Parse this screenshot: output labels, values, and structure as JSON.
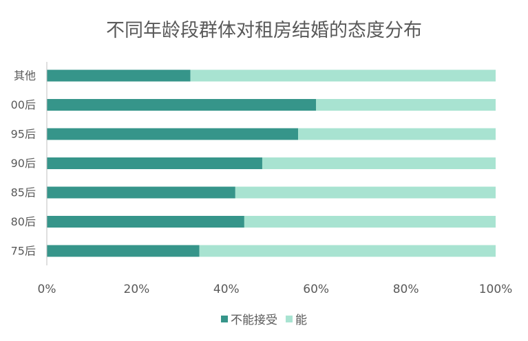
{
  "chart_data": {
    "type": "bar",
    "orientation": "horizontal",
    "stacked": true,
    "title": "不同年龄段群体对租房结婚的态度分布",
    "categories": [
      "其他",
      "00后",
      "95后",
      "90后",
      "85后",
      "80后",
      "75后"
    ],
    "series": [
      {
        "name": "不能接受",
        "color": "#36958a",
        "values": [
          32,
          60,
          56,
          48,
          42,
          44,
          34
        ]
      },
      {
        "name": "能",
        "color": "#a8e3d1",
        "values": [
          68,
          40,
          44,
          52,
          58,
          56,
          66
        ]
      }
    ],
    "xlim": [
      0,
      100
    ],
    "xticks": [
      "0%",
      "20%",
      "40%",
      "60%",
      "80%",
      "100%"
    ],
    "legend_position": "bottom",
    "grid": false
  }
}
